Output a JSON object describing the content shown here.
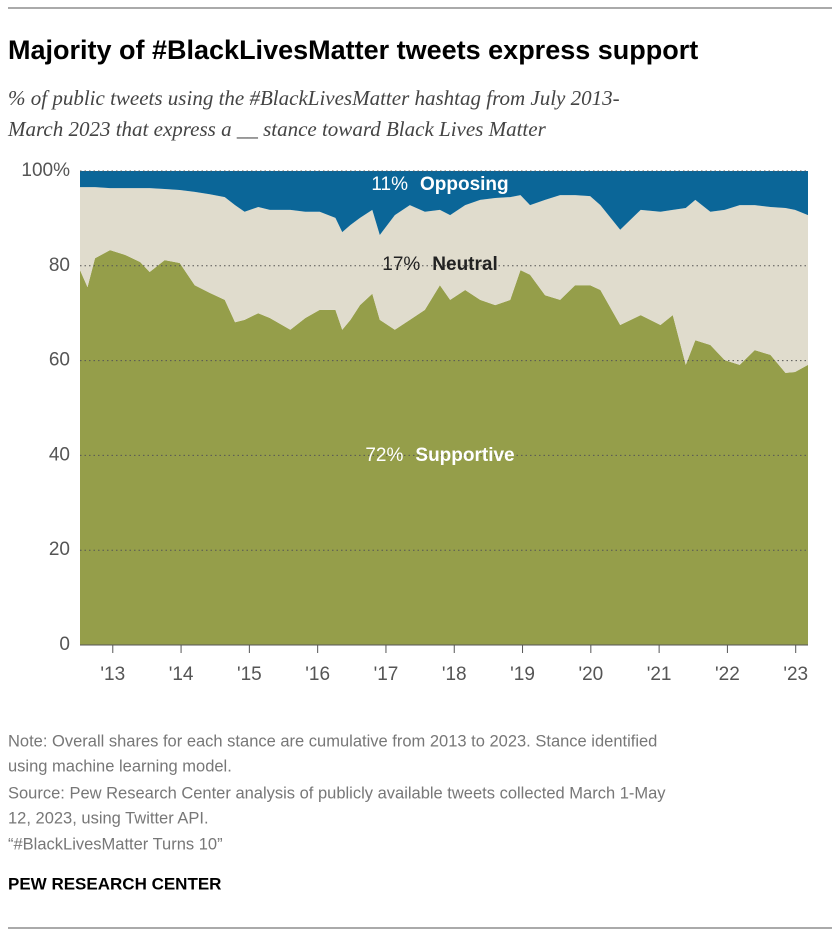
{
  "chart_data": {
    "type": "stacked_area",
    "title": "Majority of #BlackLivesMatter tweets express support",
    "subtitle": [
      "% of public tweets using the #BlackLivesMatter hashtag from July 2013-",
      "March 2023 that express a __ stance toward Black Lives Matter"
    ],
    "x": [
      2012.52,
      2012.63,
      2012.74,
      2012.96,
      2013.18,
      2013.4,
      2013.54,
      2013.76,
      2013.98,
      2014.2,
      2014.42,
      2014.64,
      2014.79,
      2014.93,
      2015.13,
      2015.3,
      2015.6,
      2015.82,
      2016.03,
      2016.26,
      2016.36,
      2016.48,
      2016.62,
      2016.8,
      2016.91,
      2017.13,
      2017.35,
      2017.57,
      2017.79,
      2017.94,
      2018.16,
      2018.38,
      2018.6,
      2018.82,
      2018.97,
      2019.11,
      2019.33,
      2019.55,
      2019.77,
      2019.99,
      2020.14,
      2020.43,
      2020.73,
      2021.02,
      2021.2,
      2021.39,
      2021.53,
      2021.75,
      2021.96,
      2022.18,
      2022.4,
      2022.63,
      2022.85,
      2022.99,
      2023.18
    ],
    "series": [
      {
        "name": "Supportive",
        "color": "#959e4a",
        "total": 72,
        "total_label": "72%",
        "label_color": "#ffffff",
        "values": [
          79.1,
          75.5,
          81.6,
          83.3,
          82.3,
          80.8,
          78.7,
          81.2,
          80.6,
          75.9,
          74.3,
          72.8,
          68.1,
          68.6,
          70.0,
          69.0,
          66.5,
          69.0,
          70.7,
          70.7,
          66.5,
          68.6,
          71.7,
          74.1,
          68.6,
          66.5,
          68.6,
          70.7,
          75.9,
          72.8,
          74.9,
          72.8,
          71.7,
          72.8,
          79.1,
          78.1,
          73.8,
          72.8,
          75.9,
          75.9,
          74.9,
          67.5,
          69.6,
          67.5,
          69.6,
          59.1,
          64.3,
          63.3,
          60.1,
          59.1,
          62.2,
          61.2,
          57.4,
          57.6,
          59.1
        ]
      },
      {
        "name": "Neutral",
        "color": "#e0dccd",
        "total": 17,
        "total_label": "17%",
        "label_color": "#222222",
        "values": [
          17.5,
          21.1,
          15.0,
          13.1,
          14.1,
          15.6,
          17.7,
          15.0,
          15.4,
          19.7,
          20.8,
          21.7,
          24.7,
          22.8,
          22.4,
          22.8,
          25.3,
          22.4,
          20.7,
          19.4,
          20.6,
          20.0,
          18.4,
          17.7,
          17.9,
          24.2,
          24.2,
          20.7,
          15.9,
          17.9,
          17.9,
          21.1,
          22.6,
          21.7,
          15.8,
          14.7,
          20.1,
          22.1,
          19.0,
          18.8,
          17.9,
          20.1,
          22.2,
          23.9,
          22.2,
          33.1,
          29.6,
          28.1,
          31.7,
          33.7,
          30.6,
          31.2,
          34.8,
          34.2,
          31.6
        ]
      },
      {
        "name": "Opposing",
        "color": "#0b6698",
        "total": 11,
        "total_label": "11%",
        "label_color": "#ffffff",
        "values": [
          3.4,
          3.4,
          3.4,
          3.6,
          3.6,
          3.6,
          3.6,
          3.8,
          4.0,
          4.4,
          4.9,
          5.5,
          7.2,
          8.6,
          7.6,
          8.2,
          8.2,
          8.6,
          8.6,
          9.9,
          12.9,
          11.4,
          9.9,
          8.2,
          13.5,
          9.3,
          7.2,
          8.6,
          8.2,
          9.3,
          7.2,
          6.1,
          5.7,
          5.5,
          5.1,
          7.2,
          6.1,
          5.1,
          5.1,
          5.3,
          7.2,
          12.4,
          8.2,
          8.6,
          8.2,
          7.8,
          6.1,
          8.6,
          8.2,
          7.2,
          7.2,
          7.6,
          7.8,
          8.2,
          9.3
        ]
      }
    ],
    "xlim": [
      2012.52,
      2023.18
    ],
    "xticks": [
      {
        "value": 2013,
        "label": "'13"
      },
      {
        "value": 2014,
        "label": "'14"
      },
      {
        "value": 2015,
        "label": "'15"
      },
      {
        "value": 2016,
        "label": "'16"
      },
      {
        "value": 2017,
        "label": "'17"
      },
      {
        "value": 2018,
        "label": "'18"
      },
      {
        "value": 2019,
        "label": "'19"
      },
      {
        "value": 2020,
        "label": "'20"
      },
      {
        "value": 2021,
        "label": "'21"
      },
      {
        "value": 2022,
        "label": "'22"
      },
      {
        "value": 2023,
        "label": "'23"
      }
    ],
    "ylim": [
      0,
      100
    ],
    "yticks": [
      0,
      20,
      40,
      60,
      80,
      {
        "value": 100,
        "label": "100%"
      }
    ],
    "grid": true,
    "notes": [
      "Note: Overall shares for each stance are cumulative from 2013 to 2023. Stance identified",
      "using machine learning model.",
      "Source: Pew Research Center analysis of publicly available tweets collected March 1-May",
      "12, 2023, using Twitter API.",
      "“#BlackLivesMatter Turns 10”"
    ],
    "source_brand": "PEW RESEARCH CENTER"
  }
}
